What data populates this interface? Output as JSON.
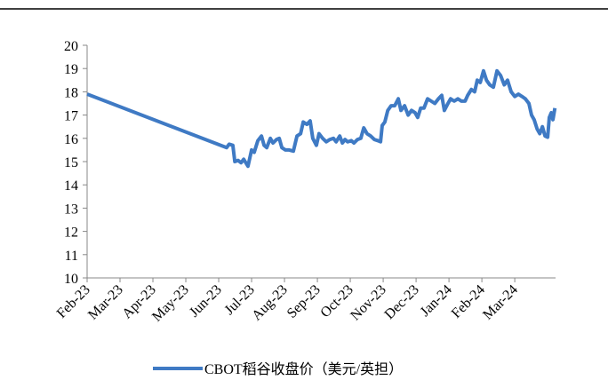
{
  "chart_data": {
    "type": "line",
    "series": [
      {
        "name": "CBOT稻谷收盘价（美元/英担）",
        "color": "#3f7ac4",
        "x": [
          0,
          4.24,
          4.32,
          4.43,
          4.49,
          4.59,
          4.68,
          4.76,
          4.89,
          5.0,
          5.08,
          5.19,
          5.3,
          5.38,
          5.46,
          5.57,
          5.65,
          5.76,
          5.84,
          5.92,
          6.03,
          6.14,
          6.27,
          6.38,
          6.49,
          6.57,
          6.68,
          6.78,
          6.86,
          6.97,
          7.05,
          7.16,
          7.27,
          7.38,
          7.49,
          7.57,
          7.68,
          7.76,
          7.84,
          7.92,
          8.03,
          8.11,
          8.22,
          8.32,
          8.41,
          8.51,
          8.62,
          8.73,
          8.84,
          8.92,
          8.97,
          9.05,
          9.14,
          9.24,
          9.35,
          9.46,
          9.54,
          9.65,
          9.76,
          9.86,
          9.97,
          10.05,
          10.14,
          10.24,
          10.35,
          10.46,
          10.57,
          10.68,
          10.78,
          10.86,
          10.97,
          11.05,
          11.16,
          11.27,
          11.38,
          11.49,
          11.57,
          11.68,
          11.78,
          11.86,
          11.95,
          12.05,
          12.14,
          12.24,
          12.35,
          12.46,
          12.57,
          12.68,
          12.78,
          12.89,
          13.0,
          13.11,
          13.22,
          13.32,
          13.43,
          13.51,
          13.59,
          13.68,
          13.76,
          13.84,
          13.92,
          14.0,
          14.05,
          14.11,
          14.16,
          14.22
        ],
        "values": [
          17.9,
          15.6,
          15.75,
          15.7,
          15.0,
          15.05,
          14.95,
          15.1,
          14.8,
          15.5,
          15.4,
          15.9,
          16.1,
          15.7,
          15.6,
          16.0,
          15.8,
          15.95,
          16.0,
          15.6,
          15.5,
          15.5,
          15.45,
          16.1,
          16.2,
          16.7,
          16.6,
          16.75,
          16.0,
          15.7,
          16.2,
          16.0,
          15.85,
          15.95,
          16.0,
          15.85,
          16.1,
          15.8,
          15.95,
          15.85,
          15.9,
          15.8,
          15.95,
          16.0,
          16.45,
          16.2,
          16.1,
          15.95,
          15.9,
          15.85,
          16.55,
          16.7,
          17.2,
          17.4,
          17.4,
          17.7,
          17.2,
          17.4,
          17.0,
          17.2,
          17.1,
          16.9,
          17.3,
          17.3,
          17.7,
          17.6,
          17.5,
          17.7,
          17.85,
          17.2,
          17.5,
          17.7,
          17.6,
          17.7,
          17.6,
          17.6,
          17.85,
          18.1,
          18.0,
          18.5,
          18.4,
          18.9,
          18.5,
          18.3,
          18.2,
          18.9,
          18.7,
          18.3,
          18.5,
          18.0,
          17.8,
          17.9,
          17.8,
          17.7,
          17.5,
          17.0,
          16.8,
          16.4,
          16.2,
          16.5,
          16.1,
          16.05,
          16.9,
          17.1,
          16.8,
          17.3
        ]
      }
    ],
    "xlim": [
      0,
      14.24
    ],
    "xticks": [
      {
        "value": 0,
        "label": "Feb-23"
      },
      {
        "value": 1,
        "label": "Mar-23"
      },
      {
        "value": 2,
        "label": "Apr-23"
      },
      {
        "value": 3,
        "label": "May-23"
      },
      {
        "value": 4,
        "label": "Jun-23"
      },
      {
        "value": 5,
        "label": "Jul-23"
      },
      {
        "value": 6,
        "label": "Aug-23"
      },
      {
        "value": 7,
        "label": "Sep-23"
      },
      {
        "value": 8,
        "label": "Oct-23"
      },
      {
        "value": 9,
        "label": "Nov-23"
      },
      {
        "value": 10,
        "label": "Dec-23"
      },
      {
        "value": 11,
        "label": "Jan-24"
      },
      {
        "value": 12,
        "label": "Feb-24"
      },
      {
        "value": 13,
        "label": "Mar-24"
      }
    ],
    "ylim": [
      10,
      20
    ],
    "yticks": [
      10,
      11,
      12,
      13,
      14,
      15,
      16,
      17,
      18,
      19,
      20
    ],
    "grid": false,
    "legend": "bottom"
  }
}
